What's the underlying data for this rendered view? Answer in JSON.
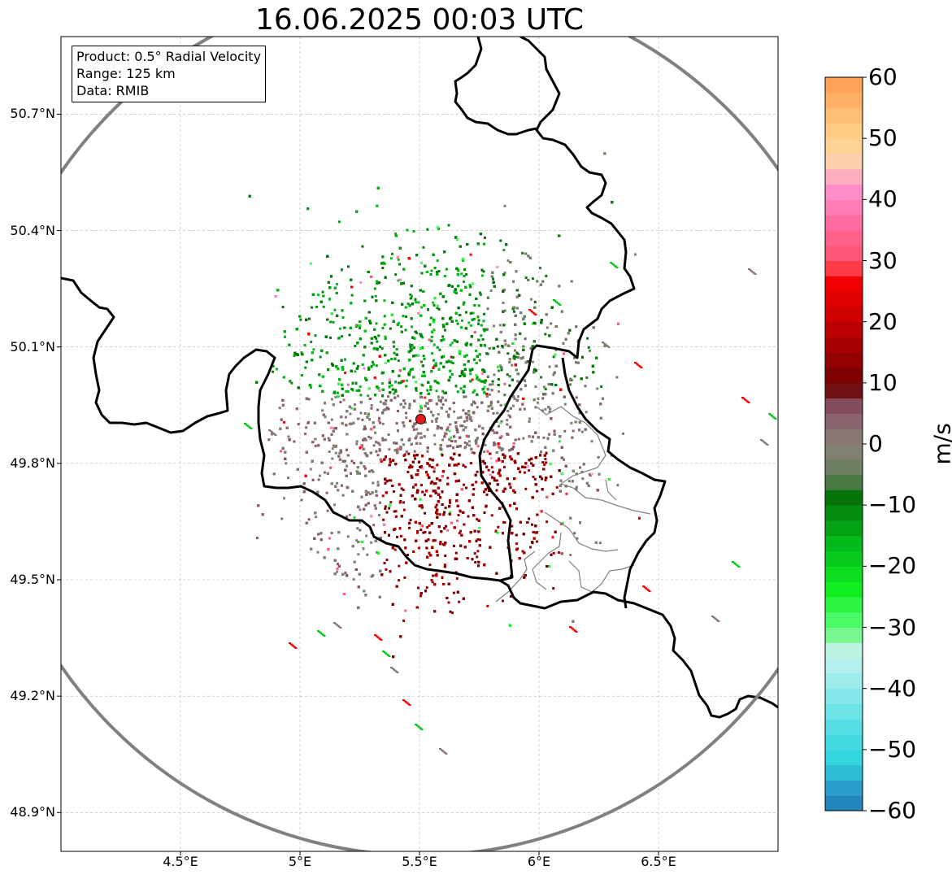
{
  "title": "16.06.2025 00:03 UTC",
  "info_box": {
    "product": "Product: 0.5° Radial Velocity",
    "range": "Range: 125 km",
    "source": "Data: RMIB"
  },
  "axes": {
    "lon_min": 4.0,
    "lon_max": 7.0,
    "lat_min": 48.8,
    "lat_max": 50.9,
    "lon_ticks": [
      {
        "value": 4.5,
        "label": "4.5°E"
      },
      {
        "value": 5.0,
        "label": "5°E"
      },
      {
        "value": 5.5,
        "label": "5.5°E"
      },
      {
        "value": 6.0,
        "label": "6°E"
      },
      {
        "value": 6.5,
        "label": "6.5°E"
      }
    ],
    "lat_ticks": [
      {
        "value": 50.7,
        "label": "50.7°N"
      },
      {
        "value": 50.4,
        "label": "50.4°N"
      },
      {
        "value": 50.1,
        "label": "50.1°N"
      },
      {
        "value": 49.8,
        "label": "49.8°N"
      },
      {
        "value": 49.5,
        "label": "49.5°N"
      },
      {
        "value": 49.2,
        "label": "49.2°N"
      },
      {
        "value": 48.9,
        "label": "48.9°N"
      }
    ],
    "grid": true
  },
  "radar": {
    "site_lon": 5.505,
    "site_lat": 49.914,
    "range_km": 125,
    "site_color": "#e31a1c"
  },
  "colorbar": {
    "label": "m/s",
    "vmin": -60,
    "vmax": 60,
    "ticks": [
      {
        "value": 60,
        "label": "60"
      },
      {
        "value": 50,
        "label": "50"
      },
      {
        "value": 40,
        "label": "40"
      },
      {
        "value": 30,
        "label": "30"
      },
      {
        "value": 20,
        "label": "20"
      },
      {
        "value": 10,
        "label": "10"
      },
      {
        "value": 0,
        "label": "0"
      },
      {
        "value": -10,
        "label": "−10"
      },
      {
        "value": -20,
        "label": "−20"
      },
      {
        "value": -30,
        "label": "−30"
      },
      {
        "value": -40,
        "label": "−40"
      },
      {
        "value": -50,
        "label": "−50"
      },
      {
        "value": -60,
        "label": "−60"
      }
    ],
    "stops": [
      {
        "v": -60,
        "c": "#1f78b4"
      },
      {
        "v": -56,
        "c": "#2aa0cc"
      },
      {
        "v": -52,
        "c": "#2fd5dc"
      },
      {
        "v": -45,
        "c": "#5fe0e6"
      },
      {
        "v": -38,
        "c": "#a6eeee"
      },
      {
        "v": -34,
        "c": "#c7f2f2"
      },
      {
        "v": -33,
        "c": "#9af5b0"
      },
      {
        "v": -29,
        "c": "#4dfa6a"
      },
      {
        "v": -24,
        "c": "#10f020"
      },
      {
        "v": -16,
        "c": "#03b81a"
      },
      {
        "v": -7,
        "c": "#046404"
      },
      {
        "v": -6,
        "c": "#5e8058"
      },
      {
        "v": 0,
        "c": "#8a8078"
      },
      {
        "v": 5,
        "c": "#8a5a68"
      },
      {
        "v": 8,
        "c": "#7a3a48"
      },
      {
        "v": 9,
        "c": "#6b0000"
      },
      {
        "v": 15,
        "c": "#9e0000"
      },
      {
        "v": 22,
        "c": "#d40000"
      },
      {
        "v": 28,
        "c": "#ff0000"
      },
      {
        "v": 29,
        "c": "#ff4e60"
      },
      {
        "v": 36,
        "c": "#ff6aa0"
      },
      {
        "v": 42,
        "c": "#ff92cc"
      },
      {
        "v": 46,
        "c": "#ffd0b0"
      },
      {
        "v": 50,
        "c": "#ffd48a"
      },
      {
        "v": 60,
        "c": "#ff9a50"
      }
    ]
  },
  "colors": {
    "border_national": "#000000",
    "border_regional": "#808080",
    "range_ring": "#808080",
    "grid": "#b0b0b0"
  }
}
